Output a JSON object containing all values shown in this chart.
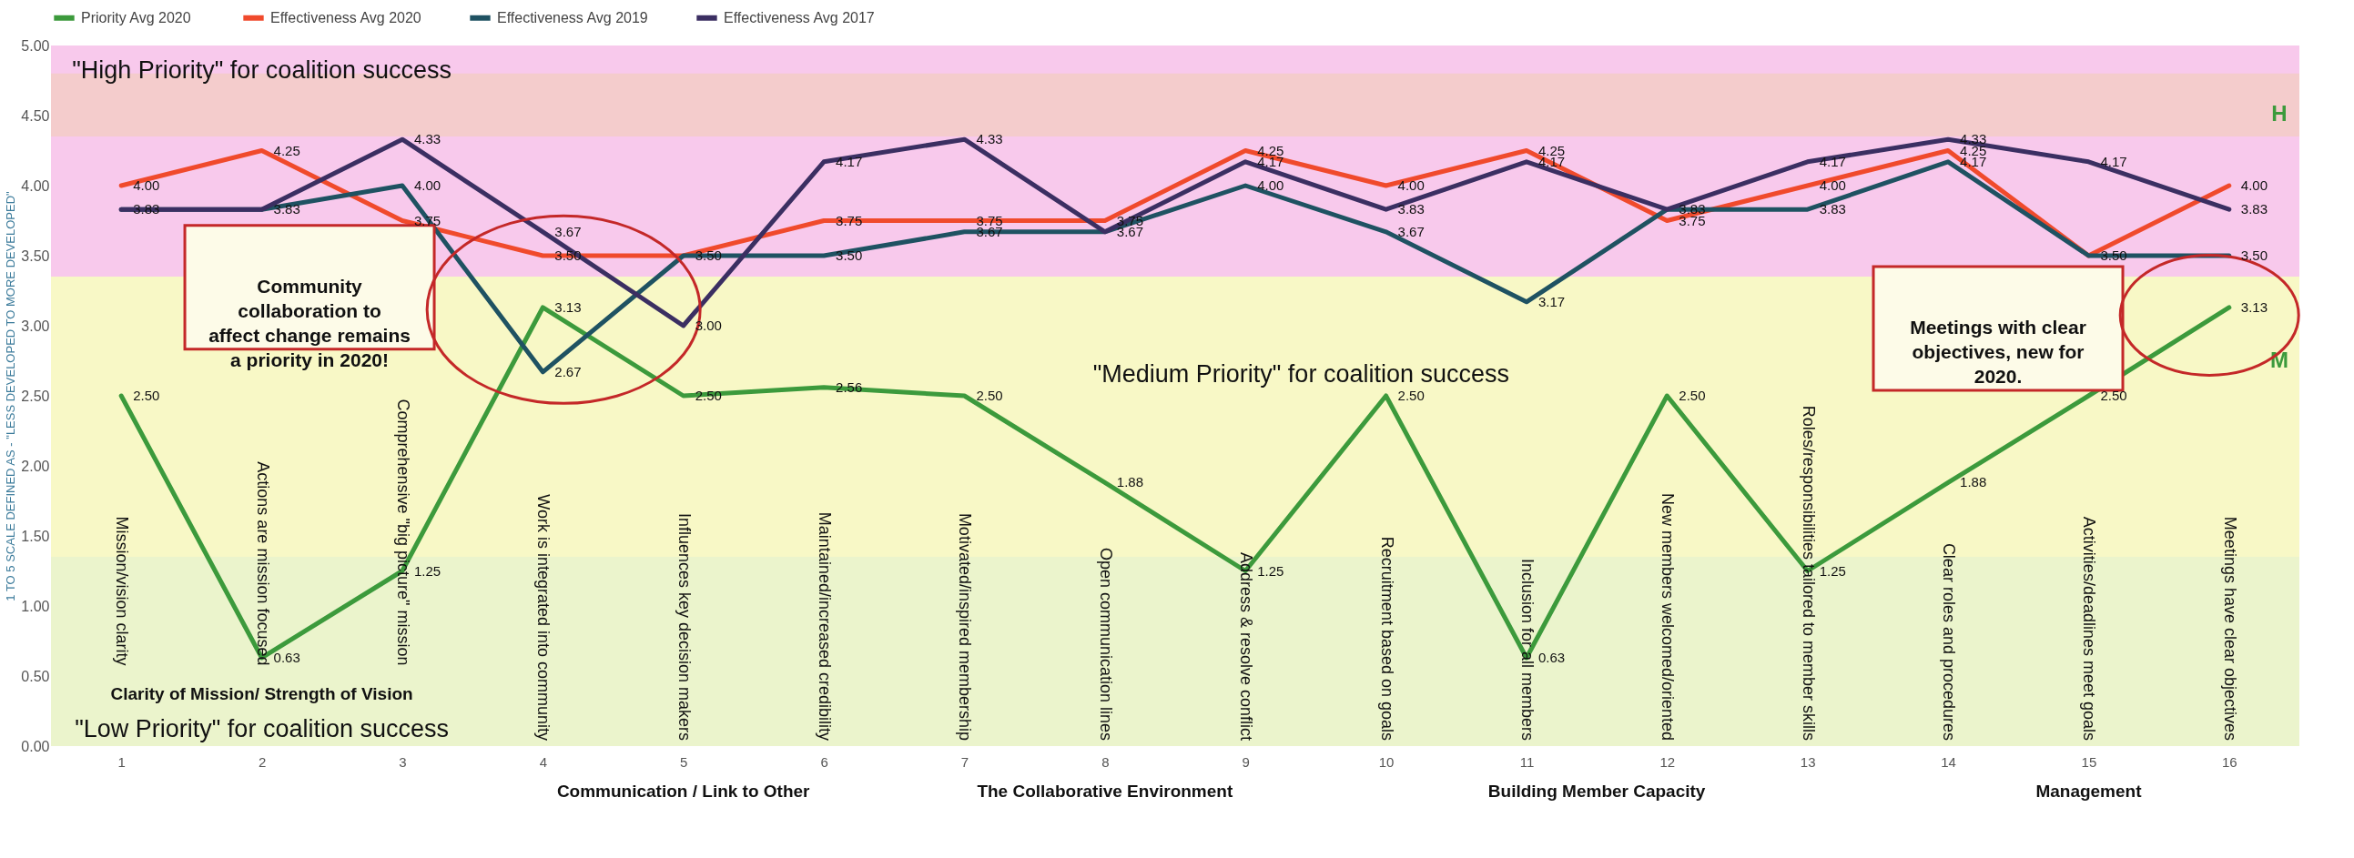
{
  "chart_data": {
    "type": "line",
    "ylabel": "1 TO 5 SCALE DEFINED AS - \"LESS DEVELOPED TO MORE DEVELOPED\"",
    "categories": [
      "1",
      "2",
      "3",
      "4",
      "5",
      "6",
      "7",
      "8",
      "9",
      "10",
      "11",
      "12",
      "13",
      "14",
      "15",
      "16"
    ],
    "series": [
      {
        "name": "Priority Avg  2020",
        "color": "#3c9a3c",
        "values": [
          2.5,
          0.63,
          1.25,
          3.13,
          2.5,
          2.56,
          2.5,
          1.88,
          1.25,
          2.5,
          0.63,
          2.5,
          1.25,
          1.88,
          2.5,
          3.13
        ],
        "value_labels": [
          "2.50",
          "0.63",
          "1.25",
          "3.13",
          "2.50",
          "2.56",
          "2.50",
          "1.88",
          "1.25",
          "2.50",
          "0.63",
          "2.50",
          "1.25",
          "1.88",
          "2.50",
          "3.13"
        ]
      },
      {
        "name": "Effectiveness Avg 2020",
        "color": "#f04a2c",
        "values": [
          4.0,
          4.25,
          3.75,
          3.5,
          3.5,
          3.75,
          3.75,
          3.75,
          4.25,
          4.0,
          4.25,
          3.75,
          4.0,
          4.25,
          3.5,
          4.0
        ],
        "value_labels": [
          "4.00",
          "4.25",
          "3.75",
          "3.50",
          "3.50",
          "3.75",
          "3.75",
          "3.75",
          "4.25",
          "4.00",
          "4.25",
          "3.75",
          "4.00",
          "4.25",
          "3.50",
          "4.00"
        ]
      },
      {
        "name": "Effectiveness Avg 2019",
        "color": "#1f5262",
        "values": [
          3.83,
          3.83,
          4.0,
          2.67,
          3.5,
          3.5,
          3.67,
          3.67,
          4.0,
          3.67,
          3.17,
          3.83,
          3.83,
          4.17,
          3.5,
          3.5
        ],
        "value_labels": [
          "3.83",
          "3.83",
          "4.00",
          "2.67",
          null,
          "3.50",
          "3.67",
          "3.67",
          "4.00",
          "3.67",
          "3.17",
          "3.83",
          "3.83",
          "4.17",
          null,
          "3.50"
        ]
      },
      {
        "name": "Effectiveness Avg 2017",
        "color": "#3b2f62",
        "values": [
          3.83,
          3.83,
          4.33,
          3.67,
          3.0,
          4.17,
          4.33,
          3.67,
          4.17,
          3.83,
          4.17,
          3.83,
          4.17,
          4.33,
          4.17,
          3.83
        ],
        "value_labels": [
          null,
          null,
          "4.33",
          "3.67",
          "3.00",
          "4.17",
          "4.33",
          null,
          "4.17",
          "3.83",
          "4.17",
          null,
          "4.17",
          "4.33",
          "4.17",
          "3.83"
        ]
      }
    ],
    "ylim": [
      0,
      5
    ],
    "yticks": [
      {
        "value": 0,
        "label": "0.00"
      },
      {
        "value": 0.5,
        "label": "0.50"
      },
      {
        "value": 1,
        "label": "1.00"
      },
      {
        "value": 1.5,
        "label": "1.50"
      },
      {
        "value": 2,
        "label": "2.00"
      },
      {
        "value": 2.5,
        "label": "2.50"
      },
      {
        "value": 3,
        "label": "3.00"
      },
      {
        "value": 3.5,
        "label": "3.50"
      },
      {
        "value": 4,
        "label": "4.00"
      },
      {
        "value": 4.5,
        "label": "4.50"
      },
      {
        "value": 5,
        "label": "5.00"
      }
    ],
    "bands": [
      {
        "axis": "y",
        "from": 3.35,
        "to": 5,
        "label": "H",
        "color": "#f8c9ec"
      },
      {
        "axis": "y",
        "from": 4.35,
        "to": 4.8,
        "color": "#f4cccc"
      },
      {
        "axis": "y",
        "from": 1.35,
        "to": 3.35,
        "label": "M",
        "color": "#f8f8c6"
      },
      {
        "axis": "y",
        "from": 0,
        "to": 1.35,
        "color": "#ebf4cc"
      }
    ],
    "legend": "top",
    "grid": false,
    "marker": "none",
    "line_style": "solid",
    "annotations": [
      "Mission/vision clarity",
      "Actions are mission focused",
      "Comprehensive \"big picture\" mission",
      "Work is integrated into community",
      "Influences key decision makers",
      "Maintained/increased credibility",
      "Motivated/inspired membership",
      "Open communication lines",
      "Address & resolve conflict",
      "Recruitment based on goals",
      "Inclusion for all members",
      "New members welcomed/oriented",
      "Roles/responsibilities tailored to member skills",
      "Clear roles and procedures",
      "Activities/deadlines meet goals",
      "Meetings have clear objectives",
      "\"High Priority\" for coalition success",
      "\"Medium Priority\" for coalition success",
      "\"Low Priority\" for coalition success",
      "Community collaboration to affect change remains a priority in 2020!",
      "Meetings with clear objectives, new for 2020.",
      "Clarity of Mission/ Strength of Vision",
      "Communication / Link to Other",
      "The Collaborative Environment",
      "Building Member Capacity",
      "Management"
    ]
  }
}
